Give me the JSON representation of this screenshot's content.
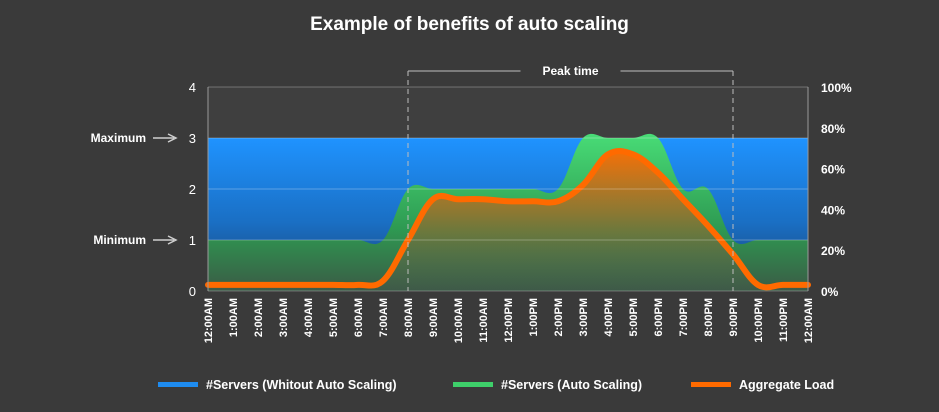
{
  "chart_data": {
    "type": "area",
    "title": "Example of benefits of auto scaling",
    "peak_label": "Peak time",
    "peak_range": [
      "8:00AM",
      "9:00PM"
    ],
    "categories": [
      "12:00AM",
      "1:00AM",
      "2:00AM",
      "3:00AM",
      "4:00AM",
      "5:00AM",
      "6:00AM",
      "7:00AM",
      "8:00AM",
      "9:00AM",
      "10:00AM",
      "11:00AM",
      "12:00PM",
      "1:00PM",
      "2:00PM",
      "3:00PM",
      "4:00PM",
      "5:00PM",
      "6:00PM",
      "7:00PM",
      "8:00PM",
      "9:00PM",
      "10:00PM",
      "11:00PM",
      "12:00AM"
    ],
    "y_left": {
      "ticks": [
        "0",
        "1",
        "2",
        "3",
        "4"
      ],
      "range": [
        0,
        4
      ]
    },
    "y_right": {
      "ticks": [
        "0%",
        "20%",
        "40%",
        "60%",
        "80%",
        "100%"
      ],
      "range": [
        0,
        100
      ]
    },
    "reference_lines": [
      {
        "label": "Maximum",
        "value": 3
      },
      {
        "label": "Minimum",
        "value": 1
      }
    ],
    "series": [
      {
        "name": "#Servers (Whitout Auto Scaling)",
        "color": "#1e8cf0",
        "axis": "left",
        "values": [
          3,
          3,
          3,
          3,
          3,
          3,
          3,
          3,
          3,
          3,
          3,
          3,
          3,
          3,
          3,
          3,
          3,
          3,
          3,
          3,
          3,
          3,
          3,
          3,
          3
        ]
      },
      {
        "name": "#Servers (Auto Scaling)",
        "color": "#3ecf6a",
        "axis": "left",
        "values": [
          1,
          1,
          1,
          1,
          1,
          1,
          1,
          1,
          2,
          2,
          2,
          2,
          2,
          2,
          2,
          3,
          3,
          3,
          3,
          2,
          2,
          1,
          1,
          1,
          1
        ]
      },
      {
        "name": "Aggregate Load",
        "color": "#ff6a00",
        "axis": "right",
        "values": [
          3,
          3,
          3,
          3,
          3,
          3,
          3,
          5,
          25,
          45,
          45,
          45,
          44,
          44,
          44,
          52,
          67,
          67,
          58,
          45,
          32,
          18,
          3,
          3,
          3
        ]
      }
    ],
    "legend_position": "bottom",
    "grid": true
  }
}
